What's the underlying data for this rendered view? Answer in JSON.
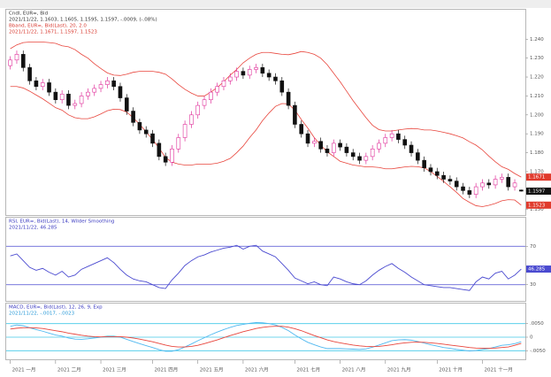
{
  "chart_data": [
    {
      "type": "candlestick",
      "title": "Cndl, EUR=, Bid",
      "subtitle": "2021/11/22, 1.1603, 1.1605, 1.1595, 1.1597, -.0009, (-.08%)",
      "up_color": "#e0309a",
      "down_color": "#111111",
      "ohlc": [
        [
          1.226,
          1.231,
          1.224,
          1.229
        ],
        [
          1.229,
          1.234,
          1.227,
          1.232
        ],
        [
          1.232,
          1.234,
          1.223,
          1.225
        ],
        [
          1.225,
          1.227,
          1.216,
          1.218
        ],
        [
          1.218,
          1.22,
          1.213,
          1.215
        ],
        [
          1.215,
          1.219,
          1.213,
          1.217
        ],
        [
          1.217,
          1.219,
          1.21,
          1.212
        ],
        [
          1.212,
          1.214,
          1.206,
          1.208
        ],
        [
          1.208,
          1.213,
          1.206,
          1.211
        ],
        [
          1.211,
          1.213,
          1.203,
          1.205
        ],
        [
          1.205,
          1.208,
          1.203,
          1.206
        ],
        [
          1.206,
          1.212,
          1.204,
          1.21
        ],
        [
          1.21,
          1.214,
          1.208,
          1.212
        ],
        [
          1.212,
          1.216,
          1.21,
          1.214
        ],
        [
          1.214,
          1.218,
          1.212,
          1.216
        ],
        [
          1.216,
          1.22,
          1.214,
          1.218
        ],
        [
          1.218,
          1.22,
          1.213,
          1.215
        ],
        [
          1.215,
          1.217,
          1.207,
          1.209
        ],
        [
          1.209,
          1.211,
          1.2,
          1.202
        ],
        [
          1.202,
          1.204,
          1.194,
          1.196
        ],
        [
          1.196,
          1.198,
          1.19,
          1.192
        ],
        [
          1.192,
          1.194,
          1.188,
          1.19
        ],
        [
          1.19,
          1.192,
          1.183,
          1.185
        ],
        [
          1.185,
          1.187,
          1.176,
          1.178
        ],
        [
          1.178,
          1.18,
          1.173,
          1.175
        ],
        [
          1.175,
          1.184,
          1.173,
          1.182
        ],
        [
          1.182,
          1.19,
          1.18,
          1.188
        ],
        [
          1.188,
          1.197,
          1.186,
          1.195
        ],
        [
          1.195,
          1.202,
          1.193,
          1.2
        ],
        [
          1.2,
          1.207,
          1.198,
          1.205
        ],
        [
          1.205,
          1.21,
          1.203,
          1.208
        ],
        [
          1.208,
          1.214,
          1.206,
          1.212
        ],
        [
          1.212,
          1.217,
          1.21,
          1.215
        ],
        [
          1.215,
          1.22,
          1.213,
          1.218
        ],
        [
          1.218,
          1.222,
          1.216,
          1.22
        ],
        [
          1.22,
          1.225,
          1.218,
          1.223
        ],
        [
          1.223,
          1.225,
          1.219,
          1.221
        ],
        [
          1.221,
          1.226,
          1.219,
          1.224
        ],
        [
          1.224,
          1.227,
          1.222,
          1.225
        ],
        [
          1.225,
          1.227,
          1.22,
          1.222
        ],
        [
          1.222,
          1.224,
          1.218,
          1.22
        ],
        [
          1.22,
          1.222,
          1.216,
          1.218
        ],
        [
          1.218,
          1.22,
          1.21,
          1.212
        ],
        [
          1.212,
          1.214,
          1.203,
          1.205
        ],
        [
          1.205,
          1.207,
          1.193,
          1.195
        ],
        [
          1.195,
          1.197,
          1.188,
          1.19
        ],
        [
          1.19,
          1.192,
          1.183,
          1.185
        ],
        [
          1.185,
          1.188,
          1.183,
          1.186
        ],
        [
          1.186,
          1.188,
          1.18,
          1.182
        ],
        [
          1.182,
          1.184,
          1.178,
          1.18
        ],
        [
          1.18,
          1.187,
          1.178,
          1.185
        ],
        [
          1.185,
          1.187,
          1.181,
          1.183
        ],
        [
          1.183,
          1.185,
          1.178,
          1.18
        ],
        [
          1.18,
          1.182,
          1.176,
          1.178
        ],
        [
          1.178,
          1.18,
          1.174,
          1.176
        ],
        [
          1.176,
          1.18,
          1.174,
          1.178
        ],
        [
          1.178,
          1.184,
          1.176,
          1.182
        ],
        [
          1.182,
          1.187,
          1.18,
          1.185
        ],
        [
          1.185,
          1.19,
          1.183,
          1.188
        ],
        [
          1.188,
          1.192,
          1.186,
          1.19
        ],
        [
          1.19,
          1.192,
          1.185,
          1.187
        ],
        [
          1.187,
          1.189,
          1.182,
          1.184
        ],
        [
          1.184,
          1.186,
          1.178,
          1.18
        ],
        [
          1.18,
          1.182,
          1.174,
          1.176
        ],
        [
          1.176,
          1.178,
          1.17,
          1.172
        ],
        [
          1.172,
          1.174,
          1.168,
          1.17
        ],
        [
          1.17,
          1.172,
          1.166,
          1.168
        ],
        [
          1.168,
          1.17,
          1.164,
          1.166
        ],
        [
          1.166,
          1.168,
          1.163,
          1.165
        ],
        [
          1.165,
          1.167,
          1.16,
          1.162
        ],
        [
          1.162,
          1.164,
          1.158,
          1.16
        ],
        [
          1.16,
          1.162,
          1.156,
          1.158
        ],
        [
          1.158,
          1.164,
          1.156,
          1.162
        ],
        [
          1.162,
          1.166,
          1.16,
          1.164
        ],
        [
          1.164,
          1.166,
          1.161,
          1.163
        ],
        [
          1.163,
          1.168,
          1.161,
          1.166
        ],
        [
          1.166,
          1.169,
          1.164,
          1.167
        ],
        [
          1.167,
          1.169,
          1.16,
          1.162
        ],
        [
          1.162,
          1.166,
          1.16,
          1.164
        ],
        [
          1.1603,
          1.1605,
          1.1595,
          1.1597
        ]
      ],
      "overlay": {
        "title": "Bband, EUR=, Bid(Last), 20, 2.0",
        "subtitle": "2021/11/22, 1.1671, 1.1597, 1.1523",
        "color": "#e8453c",
        "upper": [
          1.235,
          1.237,
          1.2382,
          1.2385,
          1.2385,
          1.2385,
          1.2382,
          1.2378,
          1.2365,
          1.236,
          1.2345,
          1.232,
          1.23,
          1.227,
          1.2245,
          1.2222,
          1.221,
          1.2208,
          1.2215,
          1.2225,
          1.223,
          1.223,
          1.223,
          1.2225,
          1.2215,
          1.219,
          1.216,
          1.2135,
          1.2115,
          1.21,
          1.21,
          1.212,
          1.2145,
          1.2175,
          1.221,
          1.224,
          1.2275,
          1.23,
          1.232,
          1.233,
          1.233,
          1.2325,
          1.232,
          1.2318,
          1.2325,
          1.2335,
          1.233,
          1.232,
          1.23,
          1.2265,
          1.222,
          1.2175,
          1.2125,
          1.2075,
          1.203,
          1.1985,
          1.1945,
          1.1922,
          1.1915,
          1.1915,
          1.192,
          1.1925,
          1.1928,
          1.1926,
          1.192,
          1.192,
          1.1915,
          1.1908,
          1.19,
          1.189,
          1.1878,
          1.1858,
          1.184,
          1.1815,
          1.1782,
          1.1752,
          1.1726,
          1.1712,
          1.169,
          1.1671
        ],
        "lower": [
          1.215,
          1.215,
          1.2142,
          1.2125,
          1.2105,
          1.2085,
          1.2062,
          1.2038,
          1.2025,
          1.2,
          1.1985,
          1.198,
          1.198,
          1.199,
          1.2005,
          1.2022,
          1.203,
          1.2028,
          1.2015,
          1.1985,
          1.195,
          1.191,
          1.187,
          1.1825,
          1.1775,
          1.175,
          1.174,
          1.1735,
          1.1735,
          1.174,
          1.174,
          1.174,
          1.1745,
          1.1755,
          1.177,
          1.18,
          1.1835,
          1.188,
          1.192,
          1.197,
          1.201,
          1.2045,
          1.206,
          1.2058,
          1.2025,
          1.1975,
          1.193,
          1.188,
          1.184,
          1.1805,
          1.178,
          1.1755,
          1.1745,
          1.1735,
          1.173,
          1.1725,
          1.1725,
          1.1722,
          1.1715,
          1.1715,
          1.172,
          1.1725,
          1.1728,
          1.1726,
          1.172,
          1.17,
          1.1675,
          1.1648,
          1.162,
          1.159,
          1.1558,
          1.1538,
          1.152,
          1.1515,
          1.1522,
          1.1532,
          1.1546,
          1.1552,
          1.155,
          1.1523
        ]
      },
      "ylim": [
        1.148,
        1.242
      ],
      "yticks": [
        {
          "value": 1.15,
          "label": "1.150"
        },
        {
          "value": 1.16,
          "label": "1.160"
        },
        {
          "value": 1.17,
          "label": "1.170"
        },
        {
          "value": 1.18,
          "label": "1.180"
        },
        {
          "value": 1.19,
          "label": "1.190"
        },
        {
          "value": 1.2,
          "label": "1.200"
        },
        {
          "value": 1.21,
          "label": "1.210"
        },
        {
          "value": 1.22,
          "label": "1.220"
        },
        {
          "value": 1.23,
          "label": "1.230"
        },
        {
          "value": 1.24,
          "label": "1.240"
        }
      ],
      "grid": false,
      "categories": [
        "2021 一月",
        null,
        null,
        null,
        null,
        null,
        null,
        "2021 二月",
        null,
        null,
        null,
        null,
        null,
        null,
        "2021 三月",
        null,
        null,
        null,
        null,
        null,
        null,
        null,
        "2021 四月",
        null,
        null,
        null,
        null,
        null,
        null,
        "2021 五月",
        null,
        null,
        null,
        null,
        null,
        null,
        "2021 六月",
        null,
        null,
        null,
        null,
        null,
        null,
        null,
        "2021 七月",
        null,
        null,
        null,
        null,
        null,
        null,
        "2021 八月",
        null,
        null,
        null,
        null,
        null,
        null,
        "2021 九月",
        null,
        null,
        null,
        null,
        null,
        null,
        null,
        "2021 十月",
        null,
        null,
        null,
        null,
        null,
        null,
        "2021 十一月",
        null,
        null,
        null,
        null,
        null,
        null
      ]
    },
    {
      "type": "line",
      "title": "RSI, EUR=, Bid(Last), 14, Wilder Smoothing",
      "subtitle": "2021/11/22, 46.285",
      "series": [
        {
          "color": "#4a4ad0",
          "values": [
            60,
            62,
            55,
            48,
            45,
            47,
            43,
            40,
            44,
            38,
            40,
            46,
            49,
            52,
            55,
            58,
            53,
            46,
            40,
            36,
            34,
            33,
            30,
            27,
            26,
            35,
            42,
            50,
            55,
            59,
            61,
            64,
            66,
            68,
            69,
            71,
            67,
            70,
            71,
            65,
            62,
            59,
            52,
            45,
            37,
            34,
            31,
            33,
            30,
            29,
            38,
            36,
            33,
            31,
            30,
            34,
            40,
            45,
            49,
            52,
            47,
            43,
            38,
            34,
            30,
            29,
            28,
            27,
            27,
            26,
            25,
            24,
            33,
            38,
            36,
            42,
            44,
            36,
            40,
            46.285
          ]
        }
      ],
      "ylim": [
        15,
        85
      ],
      "yticks": [
        30,
        70
      ],
      "grid": true,
      "grid_color": "#4a4ad0"
    },
    {
      "type": "line",
      "title": "MACD, EUR=, Bid(Last), 12, 26, 9, Exp",
      "subtitle": "2021/11/22, -.0017, -.0023",
      "series": [
        {
          "color": "#4fb8f0",
          "values": [
            0.004,
            0.0045,
            0.0042,
            0.0035,
            0.0028,
            0.0022,
            0.0015,
            0.0008,
            0.0004,
            -0.0003,
            -0.0007,
            -0.0008,
            -0.0006,
            -0.0003,
            0.0,
            0.0004,
            0.0004,
            0.0,
            -0.0008,
            -0.0016,
            -0.0024,
            -0.0031,
            -0.0038,
            -0.0046,
            -0.0052,
            -0.0052,
            -0.0046,
            -0.0036,
            -0.0025,
            -0.0013,
            -0.0002,
            0.0009,
            0.0019,
            0.0028,
            0.0036,
            0.0043,
            0.0047,
            0.0051,
            0.0054,
            0.0053,
            0.005,
            0.0045,
            0.0036,
            0.0024,
            0.0008,
            -0.0006,
            -0.0019,
            -0.0028,
            -0.0036,
            -0.0042,
            -0.0042,
            -0.0042,
            -0.0043,
            -0.0044,
            -0.0045,
            -0.0043,
            -0.0037,
            -0.0029,
            -0.0021,
            -0.0013,
            -0.001,
            -0.0009,
            -0.0011,
            -0.0016,
            -0.0022,
            -0.0028,
            -0.0033,
            -0.0038,
            -0.0041,
            -0.0045,
            -0.0048,
            -0.0051,
            -0.0049,
            -0.0045,
            -0.0042,
            -0.0036,
            -0.003,
            -0.0028,
            -0.0024,
            -0.0017
          ]
        },
        {
          "color": "#e8453c",
          "values": [
            0.003,
            0.0033,
            0.0035,
            0.0035,
            0.0034,
            0.0032,
            0.0028,
            0.0024,
            0.002,
            0.0015,
            0.0011,
            0.0007,
            0.0004,
            0.0002,
            0.0001,
            0.0002,
            0.0002,
            0.0002,
            0.0,
            -0.0003,
            -0.0007,
            -0.0012,
            -0.0017,
            -0.0023,
            -0.0029,
            -0.0034,
            -0.0036,
            -0.0036,
            -0.0034,
            -0.003,
            -0.0024,
            -0.0017,
            -0.001,
            -0.0002,
            0.0006,
            0.0013,
            0.002,
            0.0026,
            0.0032,
            0.0036,
            0.0039,
            0.004,
            0.004,
            0.0037,
            0.0031,
            0.0024,
            0.0015,
            0.0006,
            -0.0002,
            -0.001,
            -0.0016,
            -0.0021,
            -0.0025,
            -0.0029,
            -0.0032,
            -0.0034,
            -0.0035,
            -0.0034,
            -0.0031,
            -0.0028,
            -0.0024,
            -0.0021,
            -0.0019,
            -0.0018,
            -0.0019,
            -0.0021,
            -0.0023,
            -0.0026,
            -0.0029,
            -0.0032,
            -0.0035,
            -0.0038,
            -0.004,
            -0.0041,
            -0.0041,
            -0.004,
            -0.0038,
            -0.0036,
            -0.003,
            -0.0023
          ]
        }
      ],
      "ylim": [
        -0.0075,
        0.0075
      ],
      "yticks": [
        {
          "value": -0.005,
          "label": "-.0050"
        },
        0,
        {
          "value": 0.005,
          "label": ".0050"
        }
      ],
      "grid": true,
      "grid_color": "#40c8e8"
    }
  ]
}
